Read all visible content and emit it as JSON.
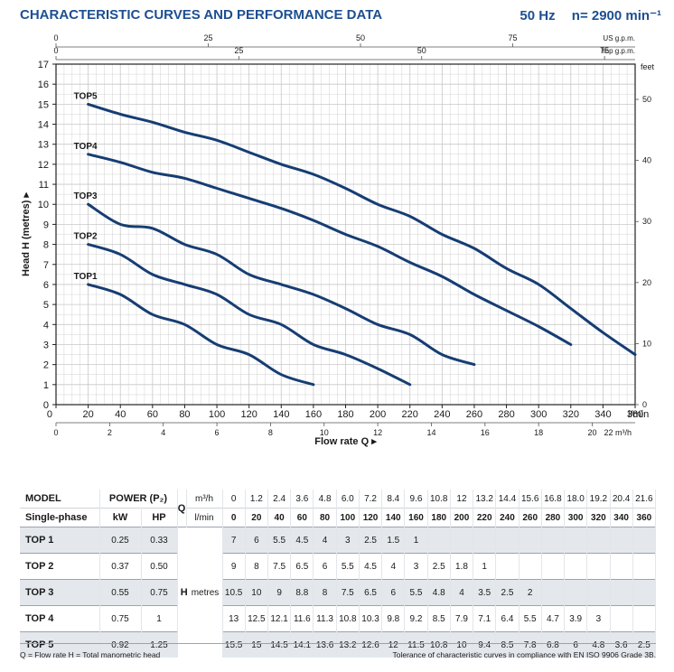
{
  "header": {
    "title": "CHARACTERISTIC CURVES AND PERFORMANCE DATA",
    "frequency": "50 Hz",
    "speed": "n= 2900 min⁻¹"
  },
  "chart_data": {
    "type": "line",
    "xlabel": "Flow rate Q ▸",
    "ylabel": "Head H (metres) ▸",
    "xlim": [
      0,
      360
    ],
    "ylim": [
      0,
      17
    ],
    "x_unit_label": "l/min",
    "grid": true,
    "x_ticks": [
      0,
      20,
      40,
      60,
      80,
      100,
      120,
      140,
      160,
      180,
      200,
      220,
      240,
      260,
      280,
      300,
      320,
      340,
      360
    ],
    "y_ticks": [
      0,
      1,
      2,
      3,
      4,
      5,
      6,
      7,
      8,
      9,
      10,
      11,
      12,
      13,
      14,
      15,
      16,
      17
    ],
    "secondary_axes": {
      "us_gpm": {
        "label": "US g.p.m.",
        "ticks": [
          0,
          25,
          50,
          75
        ]
      },
      "imp_gpm": {
        "label": "Imp g.p.m.",
        "ticks": [
          0,
          25,
          50,
          75
        ]
      },
      "m3h": {
        "label": "22 m³/h",
        "ticks": [
          0,
          2,
          4,
          6,
          8,
          10,
          12,
          14,
          16,
          18,
          20
        ]
      },
      "feet": {
        "label": "feet",
        "ticks": [
          0,
          10,
          20,
          30,
          40,
          50
        ]
      }
    },
    "series": [
      {
        "name": "TOP1",
        "x": [
          0,
          20,
          40,
          60,
          80,
          100,
          120,
          140,
          160
        ],
        "y": [
          7,
          6,
          5.5,
          4.5,
          4,
          3,
          2.5,
          1.5,
          1
        ]
      },
      {
        "name": "TOP2",
        "x": [
          0,
          20,
          40,
          60,
          80,
          100,
          120,
          140,
          160,
          180,
          200,
          220
        ],
        "y": [
          9,
          8,
          7.5,
          6.5,
          6,
          5.5,
          4.5,
          4,
          3,
          2.5,
          1.8,
          1
        ]
      },
      {
        "name": "TOP3",
        "x": [
          0,
          20,
          40,
          60,
          80,
          100,
          120,
          140,
          160,
          180,
          200,
          220,
          240,
          260
        ],
        "y": [
          10.5,
          10,
          9,
          8.8,
          8,
          7.5,
          6.5,
          6,
          5.5,
          4.8,
          4,
          3.5,
          2.5,
          2
        ]
      },
      {
        "name": "TOP4",
        "x": [
          0,
          20,
          40,
          60,
          80,
          100,
          120,
          140,
          160,
          180,
          200,
          220,
          240,
          260,
          280,
          300,
          320
        ],
        "y": [
          13,
          12.5,
          12.1,
          11.6,
          11.3,
          10.8,
          10.3,
          9.8,
          9.2,
          8.5,
          7.9,
          7.1,
          6.4,
          5.5,
          4.7,
          3.9,
          3
        ]
      },
      {
        "name": "TOP5",
        "x": [
          0,
          20,
          40,
          60,
          80,
          100,
          120,
          140,
          160,
          180,
          200,
          220,
          240,
          260,
          280,
          300,
          320,
          340,
          360
        ],
        "y": [
          15.5,
          15,
          14.5,
          14.1,
          13.6,
          13.2,
          12.6,
          12,
          11.5,
          10.8,
          10,
          9.4,
          8.5,
          7.8,
          6.8,
          6,
          4.8,
          3.6,
          2.5
        ]
      }
    ]
  },
  "table": {
    "col_model": "MODEL",
    "col_power": "POWER (P₂)",
    "col_q": "Q",
    "unit_m3h": "m³/h",
    "unit_lmin": "l/min",
    "col_single_phase": "Single-phase",
    "col_kw": "kW",
    "col_hp": "HP",
    "h_label": "H",
    "h_unit": "metres",
    "q_m3h": [
      "0",
      "1.2",
      "2.4",
      "3.6",
      "4.8",
      "6.0",
      "7.2",
      "8.4",
      "9.6",
      "10.8",
      "12",
      "13.2",
      "14.4",
      "15.6",
      "16.8",
      "18.0",
      "19.2",
      "20.4",
      "21.6"
    ],
    "q_lmin": [
      "0",
      "20",
      "40",
      "60",
      "80",
      "100",
      "120",
      "140",
      "160",
      "180",
      "200",
      "220",
      "240",
      "260",
      "280",
      "300",
      "320",
      "340",
      "360"
    ],
    "rows": [
      {
        "model": "TOP 1",
        "kw": "0.25",
        "hp": "0.33",
        "h": [
          "7",
          "6",
          "5.5",
          "4.5",
          "4",
          "3",
          "2.5",
          "1.5",
          "1",
          "",
          "",
          "",
          "",
          "",
          "",
          "",
          "",
          "",
          ""
        ]
      },
      {
        "model": "TOP 2",
        "kw": "0.37",
        "hp": "0.50",
        "h": [
          "9",
          "8",
          "7.5",
          "6.5",
          "6",
          "5.5",
          "4.5",
          "4",
          "3",
          "2.5",
          "1.8",
          "1",
          "",
          "",
          "",
          "",
          "",
          "",
          ""
        ]
      },
      {
        "model": "TOP 3",
        "kw": "0.55",
        "hp": "0.75",
        "h": [
          "10.5",
          "10",
          "9",
          "8.8",
          "8",
          "7.5",
          "6.5",
          "6",
          "5.5",
          "4.8",
          "4",
          "3.5",
          "2.5",
          "2",
          "",
          "",
          "",
          "",
          ""
        ]
      },
      {
        "model": "TOP 4",
        "kw": "0.75",
        "hp": "1",
        "h": [
          "13",
          "12.5",
          "12.1",
          "11.6",
          "11.3",
          "10.8",
          "10.3",
          "9.8",
          "9.2",
          "8.5",
          "7.9",
          "7.1",
          "6.4",
          "5.5",
          "4.7",
          "3.9",
          "3",
          "",
          ""
        ]
      },
      {
        "model": "TOP 5",
        "kw": "0.92",
        "hp": "1.25",
        "h": [
          "15.5",
          "15",
          "14.5",
          "14.1",
          "13.6",
          "13.2",
          "12.6",
          "12",
          "11.5",
          "10.8",
          "10",
          "9.4",
          "8.5",
          "7.8",
          "6.8",
          "6",
          "4.8",
          "3.6",
          "2.5"
        ]
      }
    ]
  },
  "footer": {
    "legend": "Q = Flow rate  H = Total manometric head",
    "tolerance": "Tolerance of characteristic curves in compliance with EN ISO 9906 Grade 3B."
  },
  "colors": {
    "curve": "#163d73",
    "accent": "#1d4f91",
    "grid": "#c8c8c8",
    "shade": "#e4e8ec"
  }
}
